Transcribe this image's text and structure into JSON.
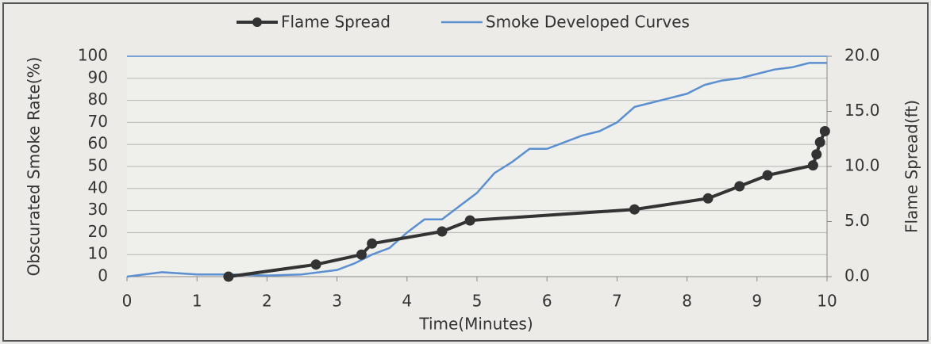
{
  "chart_data": {
    "type": "line",
    "xlabel": "Time(Minutes)",
    "ylabel": "Obscurated Smoke Rate(%)",
    "y2label": "Flame Spread(ft)",
    "xlim": [
      0,
      10
    ],
    "xticks": [
      0,
      1,
      2,
      3,
      4,
      5,
      6,
      7,
      8,
      9,
      10
    ],
    "ylim": [
      0,
      100
    ],
    "yticks": [
      0,
      10,
      20,
      30,
      40,
      50,
      60,
      70,
      80,
      90,
      100
    ],
    "y2lim": [
      0,
      20
    ],
    "y2ticks": [
      {
        "value": 0,
        "label": "0.0"
      },
      {
        "value": 5,
        "label": "5.0"
      },
      {
        "value": 10,
        "label": "10.0"
      },
      {
        "value": 15,
        "label": "15.0"
      },
      {
        "value": 20,
        "label": "20.0"
      }
    ],
    "grid": true,
    "legend": "top",
    "series": [
      {
        "name": "Flame Spread",
        "color": "#333333",
        "axis": "y2",
        "marker": true,
        "x": [
          1.45,
          2.7,
          3.35,
          3.5,
          4.5,
          4.9,
          7.25,
          8.3,
          8.75,
          9.15,
          9.8,
          9.85,
          9.9,
          9.97
        ],
        "values": [
          0,
          1.1,
          2,
          3,
          4.1,
          5.1,
          6.1,
          7.1,
          8.2,
          9.2,
          10.1,
          11.1,
          12.2,
          13.2
        ]
      },
      {
        "name": "Smoke Developed Curves",
        "color": "#5b8fd0",
        "marker": false,
        "x": [
          0,
          0.5,
          1,
          1.5,
          2,
          2.5,
          3,
          3.25,
          3.5,
          3.75,
          4,
          4.25,
          4.5,
          4.75,
          5,
          5.25,
          5.5,
          5.75,
          6,
          6.25,
          6.5,
          6.75,
          7,
          7.25,
          7.5,
          7.75,
          8,
          8.25,
          8.5,
          8.75,
          9,
          9.25,
          9.5,
          9.75,
          10
        ],
        "values": [
          0,
          2,
          1,
          1,
          0.5,
          1,
          3,
          6,
          10,
          13,
          20,
          26,
          26,
          32,
          38,
          47,
          52,
          58,
          58,
          61,
          64,
          66,
          70,
          77,
          79,
          81,
          83,
          87,
          89,
          90,
          92,
          94,
          95,
          97,
          97
        ]
      }
    ]
  }
}
